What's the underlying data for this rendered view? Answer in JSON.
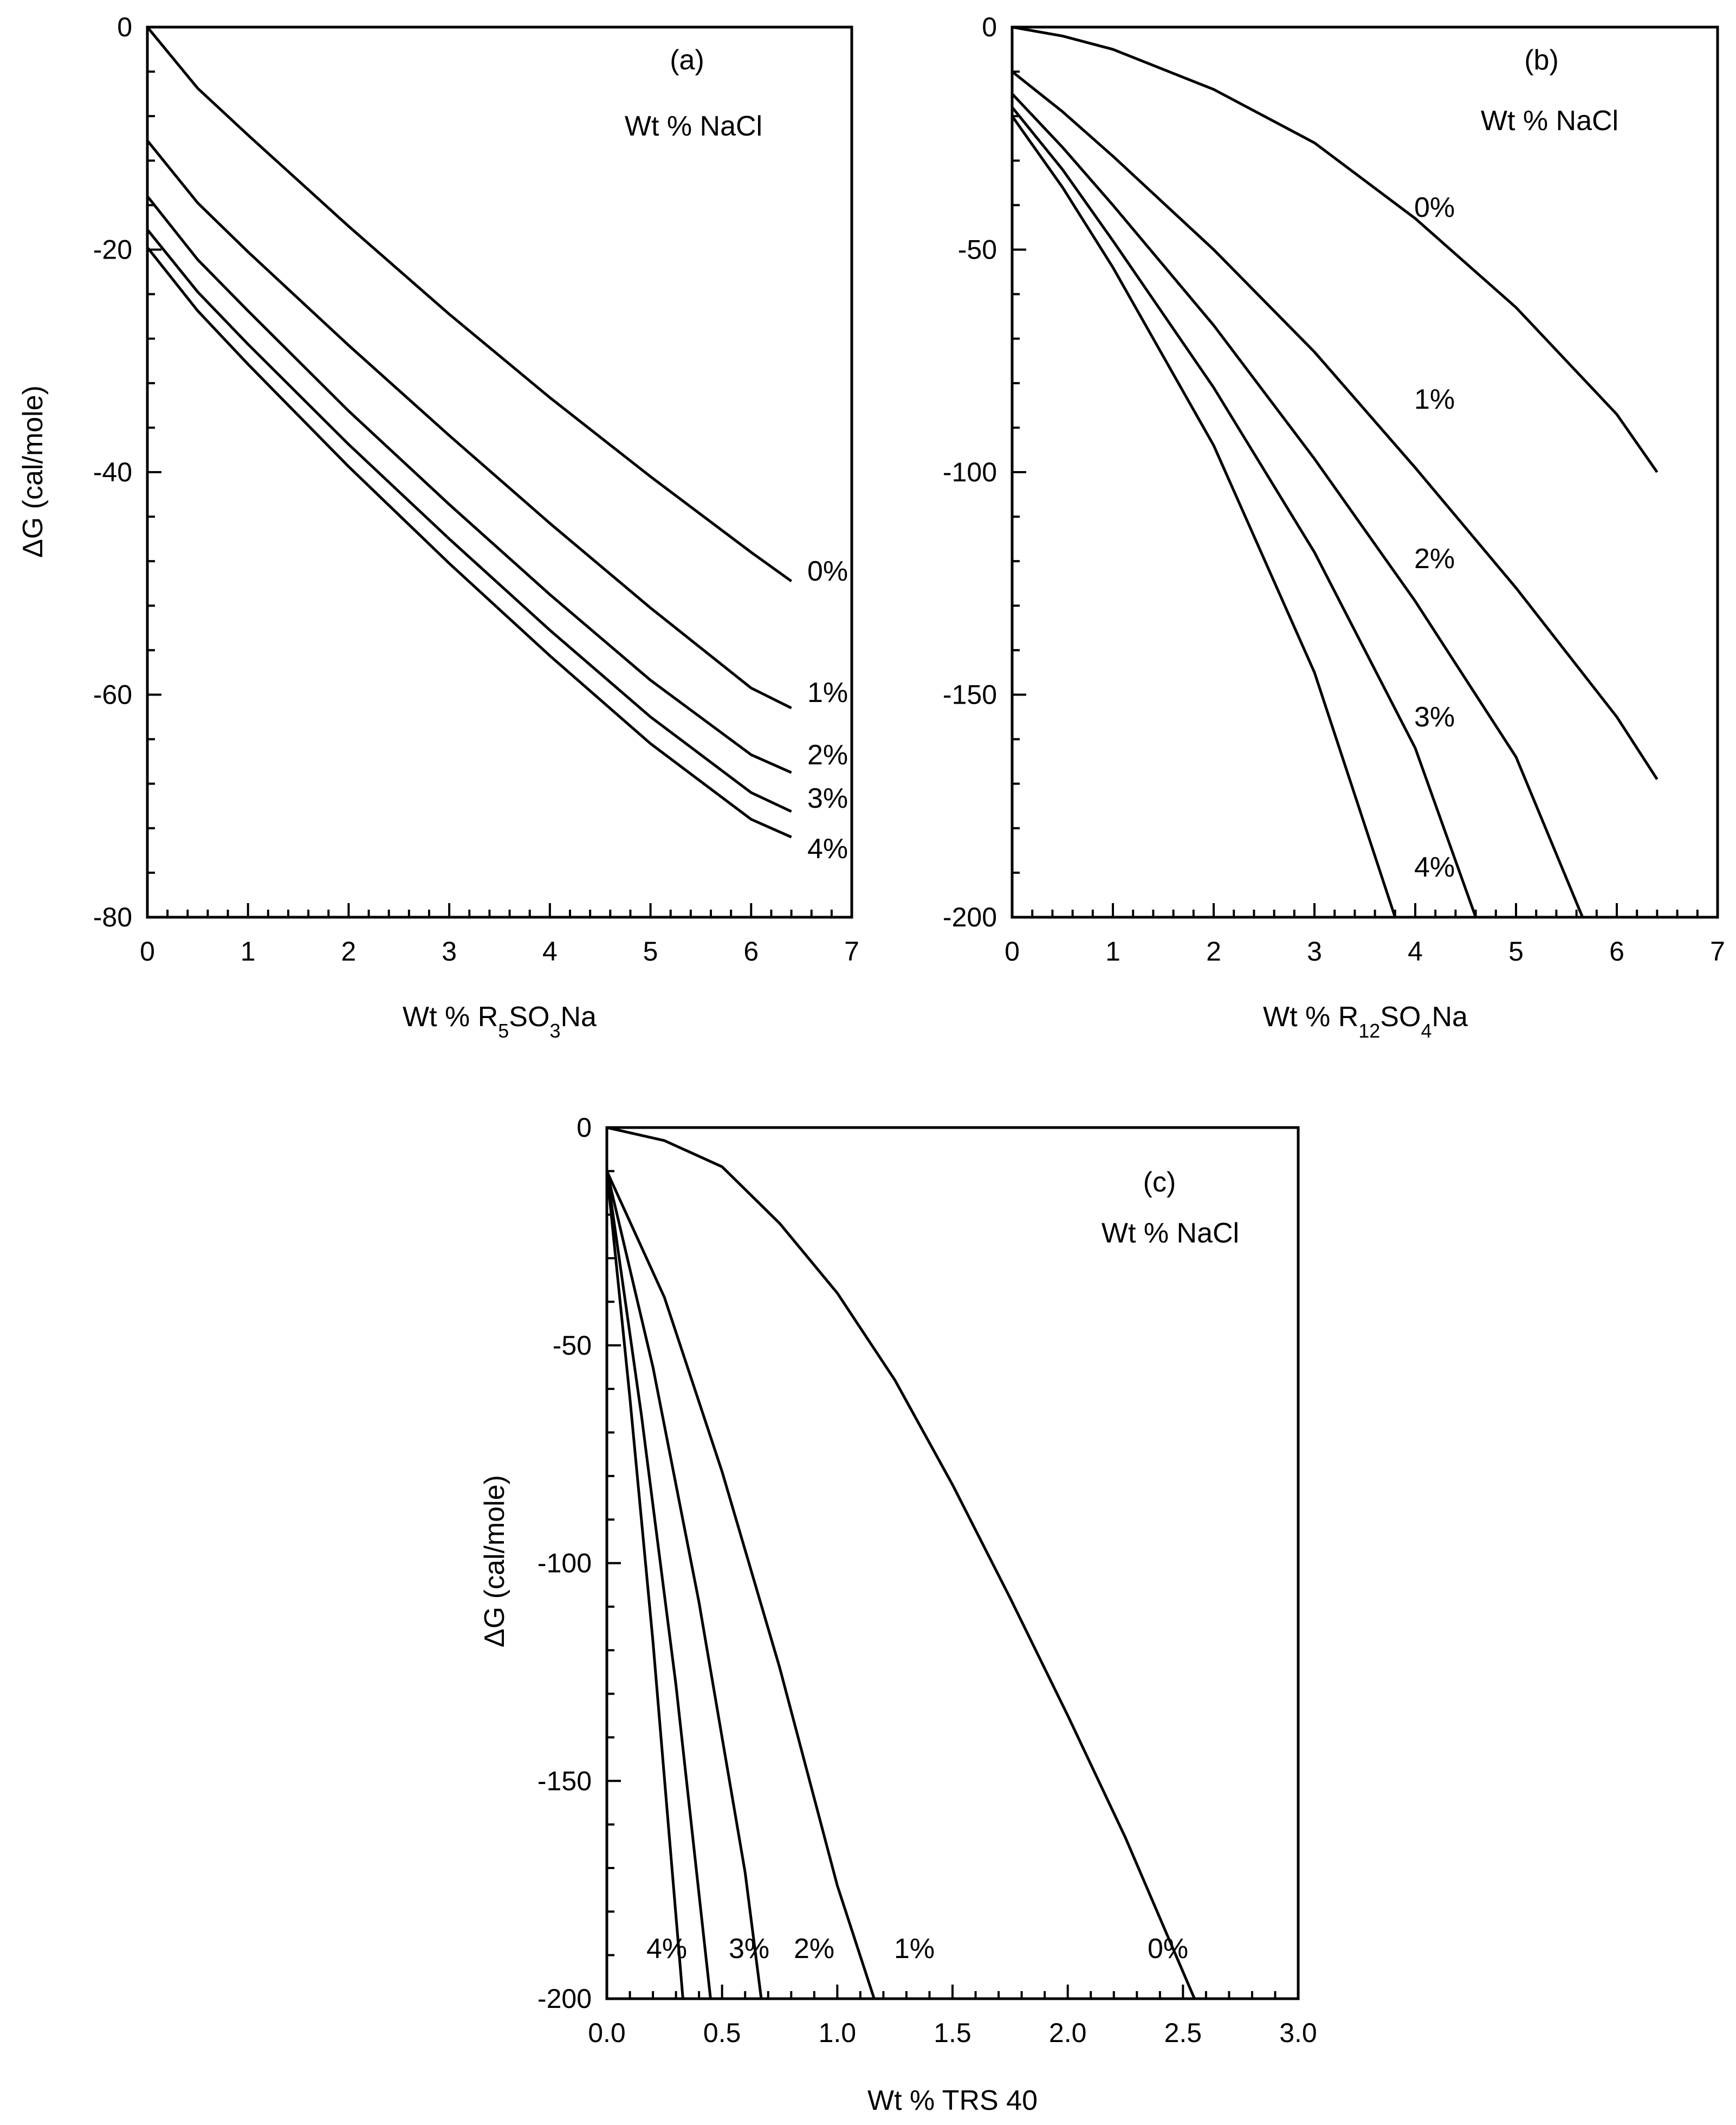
{
  "chart_data": [
    {
      "panel": "(a)",
      "type": "line",
      "annotation": "Wt % NaCl",
      "xlabel": "Wt % R5SO3Na",
      "xlabel_parts": [
        {
          "t": "Wt % R"
        },
        {
          "t": "5",
          "sub": true
        },
        {
          "t": "SO"
        },
        {
          "t": "3",
          "sub": true
        },
        {
          "t": "Na"
        }
      ],
      "ylabel": "ΔG (cal/mole)",
      "xlim": [
        0,
        7
      ],
      "ylim": [
        -80,
        0
      ],
      "xticks": [
        "0",
        "1",
        "2",
        "3",
        "4",
        "5",
        "6",
        "7"
      ],
      "yticks": [
        "0",
        "-20",
        "-40",
        "-60",
        "-80"
      ],
      "series": [
        {
          "name": "0%",
          "x": [
            0,
            0.5,
            1,
            2,
            3,
            4,
            5,
            6,
            6.4
          ],
          "y": [
            0,
            -5.5,
            -9.7,
            -17.9,
            -25.8,
            -33.3,
            -40.4,
            -47.2,
            -49.8
          ]
        },
        {
          "name": "1%",
          "x": [
            0,
            0.5,
            1,
            2,
            3,
            4,
            5,
            6,
            6.4
          ],
          "y": [
            -10.2,
            -15.8,
            -20.2,
            -28.6,
            -36.7,
            -44.6,
            -52.2,
            -59.4,
            -61.2
          ]
        },
        {
          "name": "2%",
          "x": [
            0,
            0.5,
            1,
            2,
            3,
            4,
            5,
            6,
            6.4
          ],
          "y": [
            -15.2,
            -20.9,
            -25.5,
            -34.5,
            -42.9,
            -51.0,
            -58.7,
            -65.4,
            -67.0
          ]
        },
        {
          "name": "3%",
          "x": [
            0,
            0.5,
            1,
            2,
            3,
            4,
            5,
            6,
            6.4
          ],
          "y": [
            -18.2,
            -23.8,
            -28.5,
            -37.5,
            -46.0,
            -54.2,
            -62.0,
            -68.8,
            -70.5
          ]
        },
        {
          "name": "4%",
          "x": [
            0,
            0.5,
            1,
            2,
            3,
            4,
            5,
            6,
            6.4
          ],
          "y": [
            -19.8,
            -25.5,
            -30.3,
            -39.5,
            -48.2,
            -56.5,
            -64.4,
            -71.2,
            -72.8
          ]
        }
      ]
    },
    {
      "panel": "(b)",
      "type": "line",
      "annotation": "Wt % NaCl",
      "xlabel": "Wt % R12SO4Na",
      "xlabel_parts": [
        {
          "t": "Wt % R"
        },
        {
          "t": "12",
          "sub": true
        },
        {
          "t": "SO"
        },
        {
          "t": "4",
          "sub": true
        },
        {
          "t": "Na"
        }
      ],
      "ylabel": "",
      "xlim": [
        0,
        7
      ],
      "ylim": [
        -200,
        0
      ],
      "xticks": [
        "0",
        "1",
        "2",
        "3",
        "4",
        "5",
        "6",
        "7"
      ],
      "yticks": [
        "0",
        "-50",
        "-100",
        "-150",
        "-200"
      ],
      "series": [
        {
          "name": "0%",
          "x": [
            0,
            0.5,
            1,
            2,
            3,
            4,
            5,
            6,
            6.4
          ],
          "y": [
            0,
            -2,
            -5,
            -14,
            -26,
            -43,
            -63,
            -87,
            -100
          ]
        },
        {
          "name": "1%",
          "x": [
            0,
            0.5,
            1,
            2,
            3,
            4,
            5,
            6,
            6.4
          ],
          "y": [
            -10,
            -19,
            -29,
            -50,
            -73,
            -99,
            -126,
            -155,
            -169
          ]
        },
        {
          "name": "2%",
          "x": [
            0,
            0.5,
            1,
            2,
            3,
            4,
            5,
            5.66
          ],
          "y": [
            -15,
            -27,
            -40,
            -67,
            -97,
            -129,
            -164,
            -200
          ]
        },
        {
          "name": "3%",
          "x": [
            0,
            0.5,
            1,
            2,
            3,
            4,
            4.6
          ],
          "y": [
            -18,
            -32,
            -48,
            -81,
            -118,
            -162,
            -200
          ]
        },
        {
          "name": "4%",
          "x": [
            0,
            0.5,
            1,
            2,
            3,
            3.8
          ],
          "y": [
            -20,
            -36,
            -54,
            -94,
            -145,
            -200
          ]
        }
      ]
    },
    {
      "panel": "(c)",
      "type": "line",
      "annotation": "Wt % NaCl",
      "xlabel": "Wt % TRS 40",
      "ylabel": "ΔG (cal/mole)",
      "xlim": [
        0,
        3
      ],
      "ylim": [
        -200,
        0
      ],
      "xticks": [
        "0.0",
        "0.5",
        "1.0",
        "1.5",
        "2.0",
        "2.5",
        "3.0"
      ],
      "yticks": [
        "0",
        "-50",
        "-100",
        "-150",
        "-200"
      ],
      "series": [
        {
          "name": "0%",
          "x": [
            0,
            0.25,
            0.5,
            0.75,
            1.0,
            1.25,
            1.5,
            1.75,
            2.0,
            2.25,
            2.55
          ],
          "y": [
            0,
            -3,
            -9,
            -22,
            -38,
            -58,
            -82,
            -108,
            -135,
            -163,
            -200
          ]
        },
        {
          "name": "1%",
          "x": [
            0,
            0.25,
            0.5,
            0.75,
            1.0,
            1.16
          ],
          "y": [
            -10,
            -39,
            -79,
            -124,
            -174,
            -200
          ]
        },
        {
          "name": "2%",
          "x": [
            0,
            0.2,
            0.4,
            0.6,
            0.67
          ],
          "y": [
            -10,
            -55,
            -109,
            -171,
            -200
          ]
        },
        {
          "name": "3%",
          "x": [
            0,
            0.15,
            0.3,
            0.45
          ],
          "y": [
            -10,
            -66,
            -128,
            -200
          ]
        },
        {
          "name": "4%",
          "x": [
            0,
            0.1,
            0.2,
            0.33
          ],
          "y": [
            -10,
            -62,
            -118,
            -200
          ]
        }
      ]
    }
  ]
}
